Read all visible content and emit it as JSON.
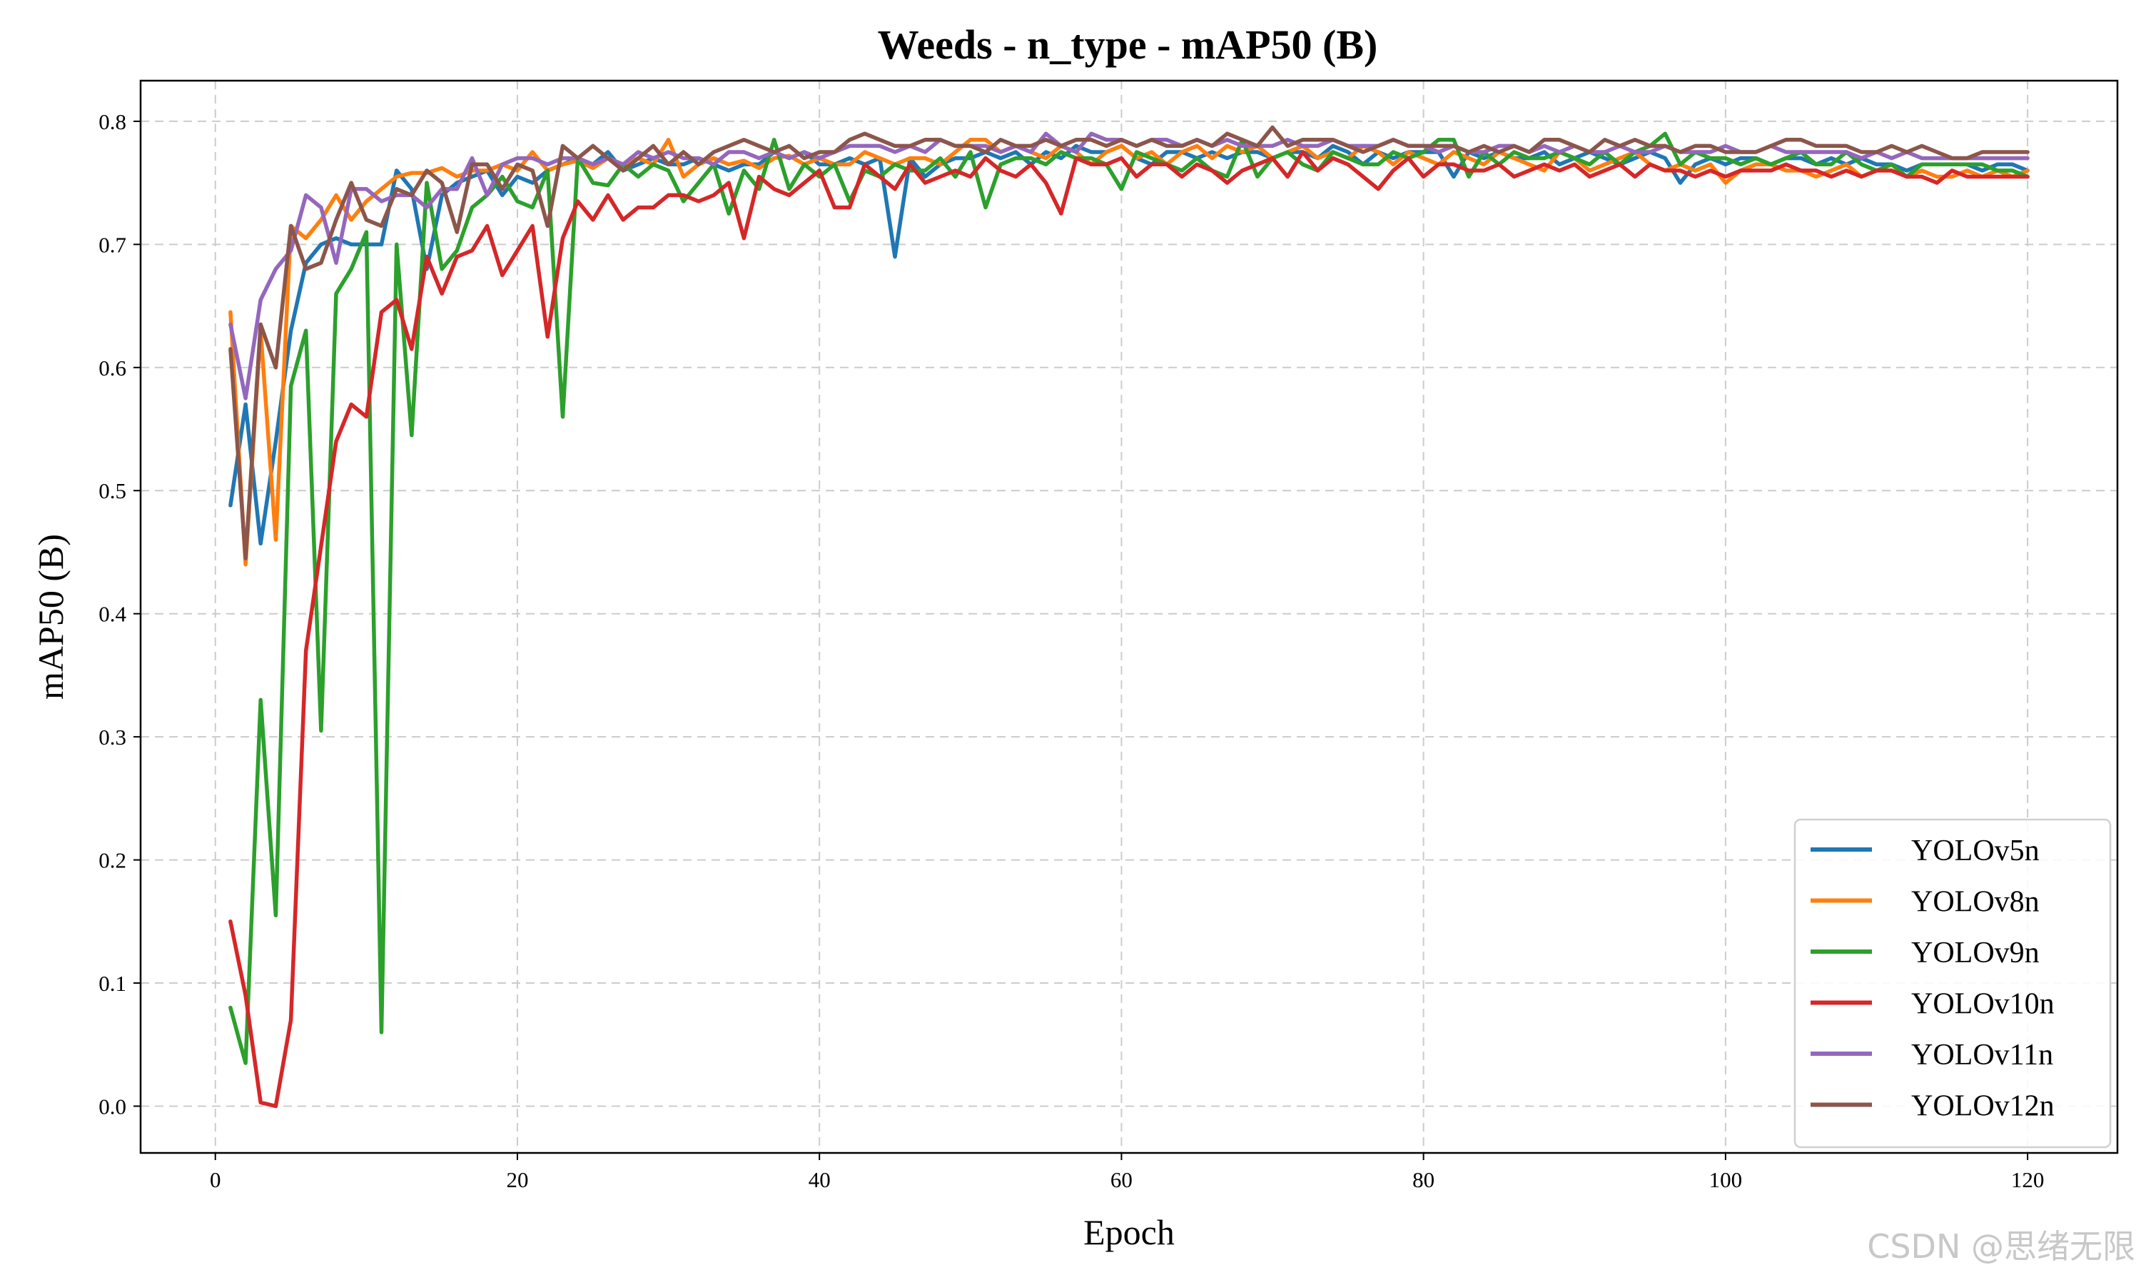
{
  "chart_data": {
    "type": "line",
    "title": "Weeds - n_type - mAP50 (B)",
    "xlabel": "Epoch",
    "ylabel": "mAP50 (B)",
    "xlim": [
      -4.95,
      125.95
    ],
    "ylim": [
      -0.038,
      0.833
    ],
    "x_ticks": [
      "0",
      "20",
      "40",
      "60",
      "80",
      "100",
      "120"
    ],
    "y_ticks": [
      "0.0",
      "0.1",
      "0.2",
      "0.3",
      "0.4",
      "0.5",
      "0.6",
      "0.7",
      "0.8"
    ],
    "grid": true,
    "legend_position": "lower-right",
    "x": [
      1,
      2,
      3,
      4,
      5,
      6,
      7,
      8,
      9,
      10,
      11,
      12,
      13,
      14,
      15,
      16,
      17,
      18,
      19,
      20,
      21,
      22,
      23,
      24,
      25,
      26,
      27,
      28,
      29,
      30,
      31,
      32,
      33,
      34,
      35,
      36,
      37,
      38,
      39,
      40,
      41,
      42,
      43,
      44,
      45,
      46,
      47,
      48,
      49,
      50,
      51,
      52,
      53,
      54,
      55,
      56,
      57,
      58,
      59,
      60,
      61,
      62,
      63,
      64,
      65,
      66,
      67,
      68,
      69,
      70,
      71,
      72,
      73,
      74,
      75,
      76,
      77,
      78,
      79,
      80,
      81,
      82,
      83,
      84,
      85,
      86,
      87,
      88,
      89,
      90,
      91,
      92,
      93,
      94,
      95,
      96,
      97,
      98,
      99,
      100,
      101,
      102,
      103,
      104,
      105,
      106,
      107,
      108,
      109,
      110,
      111,
      112,
      113,
      114,
      115,
      116,
      117,
      118,
      119,
      120
    ],
    "series": [
      {
        "name": "YOLOv5n",
        "color": "#1f77b4",
        "values": [
          0.488,
          0.57,
          0.457,
          0.54,
          0.63,
          0.685,
          0.7,
          0.705,
          0.7,
          0.7,
          0.7,
          0.76,
          0.745,
          0.68,
          0.74,
          0.75,
          0.755,
          0.76,
          0.74,
          0.755,
          0.75,
          0.76,
          0.765,
          0.77,
          0.765,
          0.775,
          0.76,
          0.765,
          0.77,
          0.765,
          0.765,
          0.77,
          0.765,
          0.76,
          0.765,
          0.765,
          0.775,
          0.77,
          0.775,
          0.765,
          0.765,
          0.77,
          0.765,
          0.77,
          0.69,
          0.77,
          0.755,
          0.765,
          0.77,
          0.77,
          0.775,
          0.77,
          0.775,
          0.765,
          0.775,
          0.77,
          0.78,
          0.775,
          0.775,
          0.78,
          0.77,
          0.765,
          0.775,
          0.775,
          0.77,
          0.775,
          0.77,
          0.775,
          0.775,
          0.77,
          0.775,
          0.775,
          0.77,
          0.78,
          0.775,
          0.765,
          0.775,
          0.77,
          0.775,
          0.775,
          0.775,
          0.755,
          0.775,
          0.77,
          0.775,
          0.77,
          0.77,
          0.775,
          0.765,
          0.77,
          0.775,
          0.77,
          0.765,
          0.77,
          0.775,
          0.77,
          0.75,
          0.765,
          0.77,
          0.765,
          0.77,
          0.77,
          0.765,
          0.77,
          0.77,
          0.765,
          0.77,
          0.765,
          0.77,
          0.765,
          0.765,
          0.76,
          0.765,
          0.765,
          0.765,
          0.765,
          0.76,
          0.765,
          0.765,
          0.76
        ]
      },
      {
        "name": "YOLOv8n",
        "color": "#ff7f0e",
        "values": [
          0.645,
          0.44,
          0.63,
          0.46,
          0.715,
          0.705,
          0.72,
          0.74,
          0.72,
          0.735,
          0.745,
          0.755,
          0.758,
          0.758,
          0.762,
          0.755,
          0.76,
          0.76,
          0.765,
          0.76,
          0.775,
          0.76,
          0.765,
          0.768,
          0.762,
          0.77,
          0.765,
          0.77,
          0.765,
          0.785,
          0.755,
          0.765,
          0.77,
          0.765,
          0.768,
          0.762,
          0.77,
          0.772,
          0.765,
          0.77,
          0.765,
          0.765,
          0.775,
          0.77,
          0.765,
          0.77,
          0.77,
          0.765,
          0.775,
          0.785,
          0.785,
          0.775,
          0.78,
          0.775,
          0.77,
          0.78,
          0.775,
          0.765,
          0.775,
          0.78,
          0.77,
          0.775,
          0.765,
          0.775,
          0.78,
          0.77,
          0.78,
          0.775,
          0.78,
          0.77,
          0.775,
          0.78,
          0.77,
          0.775,
          0.77,
          0.78,
          0.775,
          0.765,
          0.775,
          0.77,
          0.765,
          0.775,
          0.77,
          0.765,
          0.775,
          0.77,
          0.765,
          0.76,
          0.775,
          0.77,
          0.76,
          0.765,
          0.77,
          0.775,
          0.765,
          0.76,
          0.765,
          0.76,
          0.765,
          0.75,
          0.76,
          0.765,
          0.765,
          0.76,
          0.76,
          0.755,
          0.76,
          0.765,
          0.755,
          0.76,
          0.76,
          0.755,
          0.76,
          0.755,
          0.755,
          0.76,
          0.755,
          0.76,
          0.755,
          0.76
        ]
      },
      {
        "name": "YOLOv9n",
        "color": "#2ca02c",
        "values": [
          0.08,
          0.035,
          0.33,
          0.155,
          0.585,
          0.63,
          0.305,
          0.66,
          0.68,
          0.71,
          0.06,
          0.7,
          0.545,
          0.75,
          0.68,
          0.695,
          0.73,
          0.74,
          0.755,
          0.735,
          0.73,
          0.76,
          0.56,
          0.77,
          0.75,
          0.748,
          0.765,
          0.755,
          0.765,
          0.76,
          0.735,
          0.75,
          0.765,
          0.725,
          0.76,
          0.745,
          0.785,
          0.745,
          0.765,
          0.755,
          0.765,
          0.735,
          0.76,
          0.755,
          0.765,
          0.76,
          0.76,
          0.77,
          0.755,
          0.775,
          0.73,
          0.765,
          0.77,
          0.77,
          0.765,
          0.775,
          0.77,
          0.77,
          0.765,
          0.745,
          0.775,
          0.77,
          0.765,
          0.76,
          0.77,
          0.76,
          0.755,
          0.785,
          0.755,
          0.77,
          0.775,
          0.765,
          0.76,
          0.775,
          0.77,
          0.765,
          0.765,
          0.775,
          0.77,
          0.775,
          0.785,
          0.785,
          0.755,
          0.775,
          0.765,
          0.775,
          0.77,
          0.77,
          0.775,
          0.77,
          0.765,
          0.775,
          0.765,
          0.775,
          0.78,
          0.79,
          0.765,
          0.775,
          0.77,
          0.77,
          0.765,
          0.77,
          0.765,
          0.77,
          0.775,
          0.765,
          0.765,
          0.775,
          0.765,
          0.76,
          0.765,
          0.755,
          0.765,
          0.765,
          0.765,
          0.765,
          0.765,
          0.76,
          0.76,
          0.755
        ]
      },
      {
        "name": "YOLOv10n",
        "color": "#d62728",
        "values": [
          0.15,
          0.09,
          0.003,
          0.0,
          0.07,
          0.37,
          0.455,
          0.54,
          0.57,
          0.56,
          0.645,
          0.655,
          0.615,
          0.69,
          0.66,
          0.69,
          0.695,
          0.715,
          0.675,
          0.695,
          0.715,
          0.625,
          0.705,
          0.735,
          0.72,
          0.74,
          0.72,
          0.73,
          0.73,
          0.74,
          0.74,
          0.735,
          0.74,
          0.75,
          0.705,
          0.755,
          0.745,
          0.74,
          0.75,
          0.76,
          0.73,
          0.73,
          0.765,
          0.755,
          0.745,
          0.765,
          0.75,
          0.755,
          0.76,
          0.755,
          0.77,
          0.76,
          0.755,
          0.765,
          0.75,
          0.725,
          0.77,
          0.765,
          0.765,
          0.77,
          0.755,
          0.765,
          0.765,
          0.755,
          0.765,
          0.76,
          0.75,
          0.76,
          0.765,
          0.77,
          0.755,
          0.775,
          0.76,
          0.77,
          0.765,
          0.755,
          0.745,
          0.76,
          0.77,
          0.755,
          0.765,
          0.765,
          0.76,
          0.76,
          0.765,
          0.755,
          0.76,
          0.765,
          0.76,
          0.765,
          0.755,
          0.76,
          0.765,
          0.755,
          0.765,
          0.76,
          0.76,
          0.755,
          0.76,
          0.755,
          0.76,
          0.76,
          0.76,
          0.765,
          0.76,
          0.76,
          0.755,
          0.76,
          0.755,
          0.76,
          0.76,
          0.755,
          0.755,
          0.75,
          0.76,
          0.755,
          0.755,
          0.755,
          0.755,
          0.755
        ]
      },
      {
        "name": "YOLOv11n",
        "color": "#9467bd",
        "values": [
          0.635,
          0.575,
          0.655,
          0.68,
          0.695,
          0.74,
          0.73,
          0.685,
          0.745,
          0.745,
          0.735,
          0.74,
          0.74,
          0.73,
          0.745,
          0.745,
          0.77,
          0.74,
          0.765,
          0.77,
          0.77,
          0.765,
          0.77,
          0.77,
          0.765,
          0.77,
          0.765,
          0.775,
          0.77,
          0.775,
          0.77,
          0.77,
          0.765,
          0.775,
          0.775,
          0.77,
          0.775,
          0.77,
          0.775,
          0.77,
          0.775,
          0.78,
          0.78,
          0.78,
          0.775,
          0.78,
          0.775,
          0.785,
          0.78,
          0.78,
          0.78,
          0.775,
          0.78,
          0.775,
          0.79,
          0.78,
          0.775,
          0.79,
          0.785,
          0.785,
          0.78,
          0.785,
          0.785,
          0.78,
          0.785,
          0.78,
          0.785,
          0.78,
          0.78,
          0.78,
          0.785,
          0.78,
          0.78,
          0.785,
          0.78,
          0.78,
          0.78,
          0.785,
          0.78,
          0.78,
          0.775,
          0.78,
          0.775,
          0.775,
          0.78,
          0.78,
          0.775,
          0.78,
          0.775,
          0.78,
          0.775,
          0.775,
          0.78,
          0.775,
          0.775,
          0.78,
          0.775,
          0.775,
          0.775,
          0.78,
          0.775,
          0.775,
          0.78,
          0.775,
          0.775,
          0.775,
          0.775,
          0.775,
          0.77,
          0.775,
          0.77,
          0.775,
          0.77,
          0.77,
          0.77,
          0.77,
          0.77,
          0.77,
          0.77,
          0.77
        ]
      },
      {
        "name": "YOLOv12n",
        "color": "#8c564b",
        "values": [
          0.615,
          0.445,
          0.635,
          0.6,
          0.715,
          0.68,
          0.685,
          0.72,
          0.75,
          0.72,
          0.715,
          0.745,
          0.74,
          0.76,
          0.75,
          0.71,
          0.765,
          0.765,
          0.745,
          0.765,
          0.76,
          0.715,
          0.78,
          0.77,
          0.78,
          0.77,
          0.76,
          0.77,
          0.78,
          0.765,
          0.775,
          0.765,
          0.775,
          0.78,
          0.785,
          0.78,
          0.775,
          0.78,
          0.77,
          0.775,
          0.775,
          0.785,
          0.79,
          0.785,
          0.78,
          0.78,
          0.785,
          0.785,
          0.78,
          0.78,
          0.775,
          0.785,
          0.78,
          0.78,
          0.785,
          0.78,
          0.785,
          0.785,
          0.78,
          0.785,
          0.78,
          0.785,
          0.78,
          0.78,
          0.785,
          0.78,
          0.79,
          0.785,
          0.78,
          0.795,
          0.78,
          0.785,
          0.785,
          0.785,
          0.78,
          0.775,
          0.78,
          0.785,
          0.78,
          0.78,
          0.78,
          0.78,
          0.775,
          0.78,
          0.775,
          0.78,
          0.775,
          0.785,
          0.785,
          0.78,
          0.775,
          0.785,
          0.78,
          0.785,
          0.78,
          0.78,
          0.775,
          0.78,
          0.78,
          0.775,
          0.775,
          0.775,
          0.78,
          0.785,
          0.785,
          0.78,
          0.78,
          0.78,
          0.775,
          0.775,
          0.78,
          0.775,
          0.78,
          0.775,
          0.77,
          0.77,
          0.775,
          0.775,
          0.775,
          0.775
        ]
      }
    ]
  },
  "watermark": "CSDN @思绪无限"
}
